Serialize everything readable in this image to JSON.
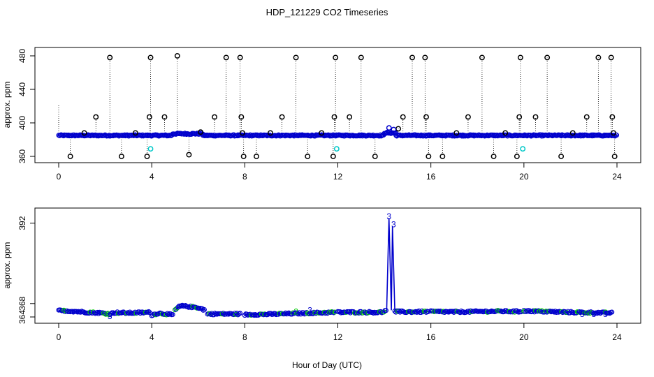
{
  "title": "HDP_121229  CO2 Timeseries",
  "xlabel": "Hour of Day (UTC)",
  "colors": {
    "point_black": "#000000",
    "point_blue": "#0000cc",
    "point_cyan": "#00c8c8",
    "point_green": "#00cc00",
    "line_blue": "#0000cc"
  },
  "chart_data": [
    {
      "type": "scatter",
      "ylabel": "approx. ppm",
      "xlim": [
        0,
        24
      ],
      "ylim": [
        360,
        480
      ],
      "xticks": [
        0,
        4,
        8,
        12,
        16,
        20,
        24
      ],
      "yticks": [
        360,
        400,
        440,
        480
      ],
      "grid": false,
      "baseline_segments": [
        {
          "x_start": 0.0,
          "x_end": 4.9,
          "y": 385
        },
        {
          "x_start": 4.9,
          "x_end": 6.2,
          "y": 387
        },
        {
          "x_start": 6.2,
          "x_end": 14.0,
          "y": 385
        },
        {
          "x_start": 14.0,
          "x_end": 14.5,
          "y": 388
        },
        {
          "x_start": 14.5,
          "x_end": 24.0,
          "y": 385
        }
      ],
      "outliers_black": [
        [
          0.5,
          360
        ],
        [
          1.1,
          388
        ],
        [
          1.6,
          407
        ],
        [
          2.2,
          478
        ],
        [
          2.7,
          360
        ],
        [
          3.3,
          388
        ],
        [
          3.8,
          360
        ],
        [
          3.9,
          407
        ],
        [
          3.95,
          478
        ],
        [
          4.55,
          407
        ],
        [
          5.1,
          480
        ],
        [
          5.6,
          362
        ],
        [
          6.1,
          389
        ],
        [
          6.7,
          407
        ],
        [
          7.2,
          478
        ],
        [
          7.8,
          478
        ],
        [
          7.85,
          407
        ],
        [
          7.9,
          388
        ],
        [
          7.95,
          360
        ],
        [
          8.5,
          360
        ],
        [
          9.1,
          388
        ],
        [
          9.6,
          407
        ],
        [
          10.2,
          478
        ],
        [
          10.7,
          360
        ],
        [
          11.3,
          388
        ],
        [
          11.8,
          360
        ],
        [
          11.85,
          407
        ],
        [
          11.9,
          478
        ],
        [
          12.5,
          407
        ],
        [
          13.0,
          478
        ],
        [
          13.6,
          360
        ],
        [
          14.6,
          393
        ],
        [
          14.8,
          407
        ],
        [
          15.2,
          478
        ],
        [
          15.75,
          478
        ],
        [
          15.8,
          407
        ],
        [
          15.9,
          360
        ],
        [
          16.5,
          360
        ],
        [
          17.1,
          388
        ],
        [
          17.6,
          407
        ],
        [
          18.2,
          478
        ],
        [
          18.7,
          360
        ],
        [
          19.2,
          388
        ],
        [
          19.7,
          360
        ],
        [
          19.8,
          407
        ],
        [
          19.85,
          478
        ],
        [
          20.5,
          407
        ],
        [
          21.0,
          478
        ],
        [
          21.6,
          360
        ],
        [
          22.1,
          388
        ],
        [
          22.7,
          407
        ],
        [
          23.2,
          478
        ],
        [
          23.75,
          478
        ],
        [
          23.8,
          407
        ],
        [
          23.85,
          388
        ],
        [
          23.9,
          360
        ]
      ],
      "outliers_blue": [
        [
          14.2,
          394
        ],
        [
          14.4,
          392
        ]
      ],
      "outliers_cyan": [
        [
          3.95,
          369
        ],
        [
          11.95,
          369
        ],
        [
          19.95,
          369
        ]
      ]
    },
    {
      "type": "line",
      "ylabel": "approx. ppm",
      "xlim": [
        0,
        24
      ],
      "ylim": [
        364,
        394
      ],
      "xticks": [
        0,
        4,
        8,
        12,
        16,
        20,
        24
      ],
      "yticks": [
        364,
        368,
        392
      ],
      "grid": false,
      "series": [
        {
          "points": [
            [
              0.0,
              365.9
            ],
            [
              0.6,
              365.7
            ],
            [
              1.2,
              365.4
            ],
            [
              1.8,
              365.2
            ],
            [
              2.2,
              364.9
            ],
            [
              2.4,
              365.3
            ],
            [
              3.0,
              365.2
            ],
            [
              3.6,
              365.3
            ],
            [
              3.95,
              365.4
            ],
            [
              4.0,
              364.6
            ],
            [
              4.3,
              365.1
            ],
            [
              4.6,
              364.9
            ],
            [
              4.9,
              364.6
            ],
            [
              5.0,
              366.0
            ],
            [
              5.15,
              367.0
            ],
            [
              5.3,
              367.3
            ],
            [
              5.7,
              367.0
            ],
            [
              6.0,
              366.8
            ],
            [
              6.3,
              366.0
            ],
            [
              6.4,
              364.9
            ],
            [
              7.0,
              364.9
            ],
            [
              7.8,
              364.9
            ],
            [
              8.0,
              364.7
            ],
            [
              9.0,
              364.8
            ],
            [
              10.0,
              365.0
            ],
            [
              11.0,
              365.2
            ],
            [
              11.9,
              365.4
            ],
            [
              12.0,
              365.4
            ],
            [
              13.0,
              365.4
            ],
            [
              13.9,
              365.4
            ],
            [
              14.1,
              366.0
            ],
            [
              14.2,
              393.5
            ],
            [
              14.3,
              366.0
            ],
            [
              14.35,
              391.0
            ],
            [
              14.45,
              365.6
            ],
            [
              15.0,
              365.5
            ],
            [
              15.9,
              365.6
            ],
            [
              16.0,
              365.6
            ],
            [
              17.0,
              365.5
            ],
            [
              18.0,
              365.6
            ],
            [
              19.0,
              365.7
            ],
            [
              19.9,
              365.6
            ],
            [
              20.0,
              365.8
            ],
            [
              21.0,
              365.6
            ],
            [
              22.0,
              365.4
            ],
            [
              23.0,
              365.3
            ],
            [
              23.8,
              365.2
            ]
          ]
        }
      ],
      "flag_labels": [
        {
          "text": "3",
          "x": 2.2,
          "y": 364.2
        },
        {
          "text": "2",
          "x": 10.2,
          "y": 365.6
        },
        {
          "text": "3",
          "x": 10.8,
          "y": 366.0
        },
        {
          "text": "3",
          "x": 14.2,
          "y": 394.0
        },
        {
          "text": "3",
          "x": 14.4,
          "y": 391.6
        },
        {
          "text": "3",
          "x": 20.0,
          "y": 365.8
        },
        {
          "text": "3",
          "x": 22.5,
          "y": 364.8
        },
        {
          "text": "3",
          "x": 23.0,
          "y": 364.8
        },
        {
          "text": "3",
          "x": 23.5,
          "y": 364.8
        }
      ]
    }
  ]
}
